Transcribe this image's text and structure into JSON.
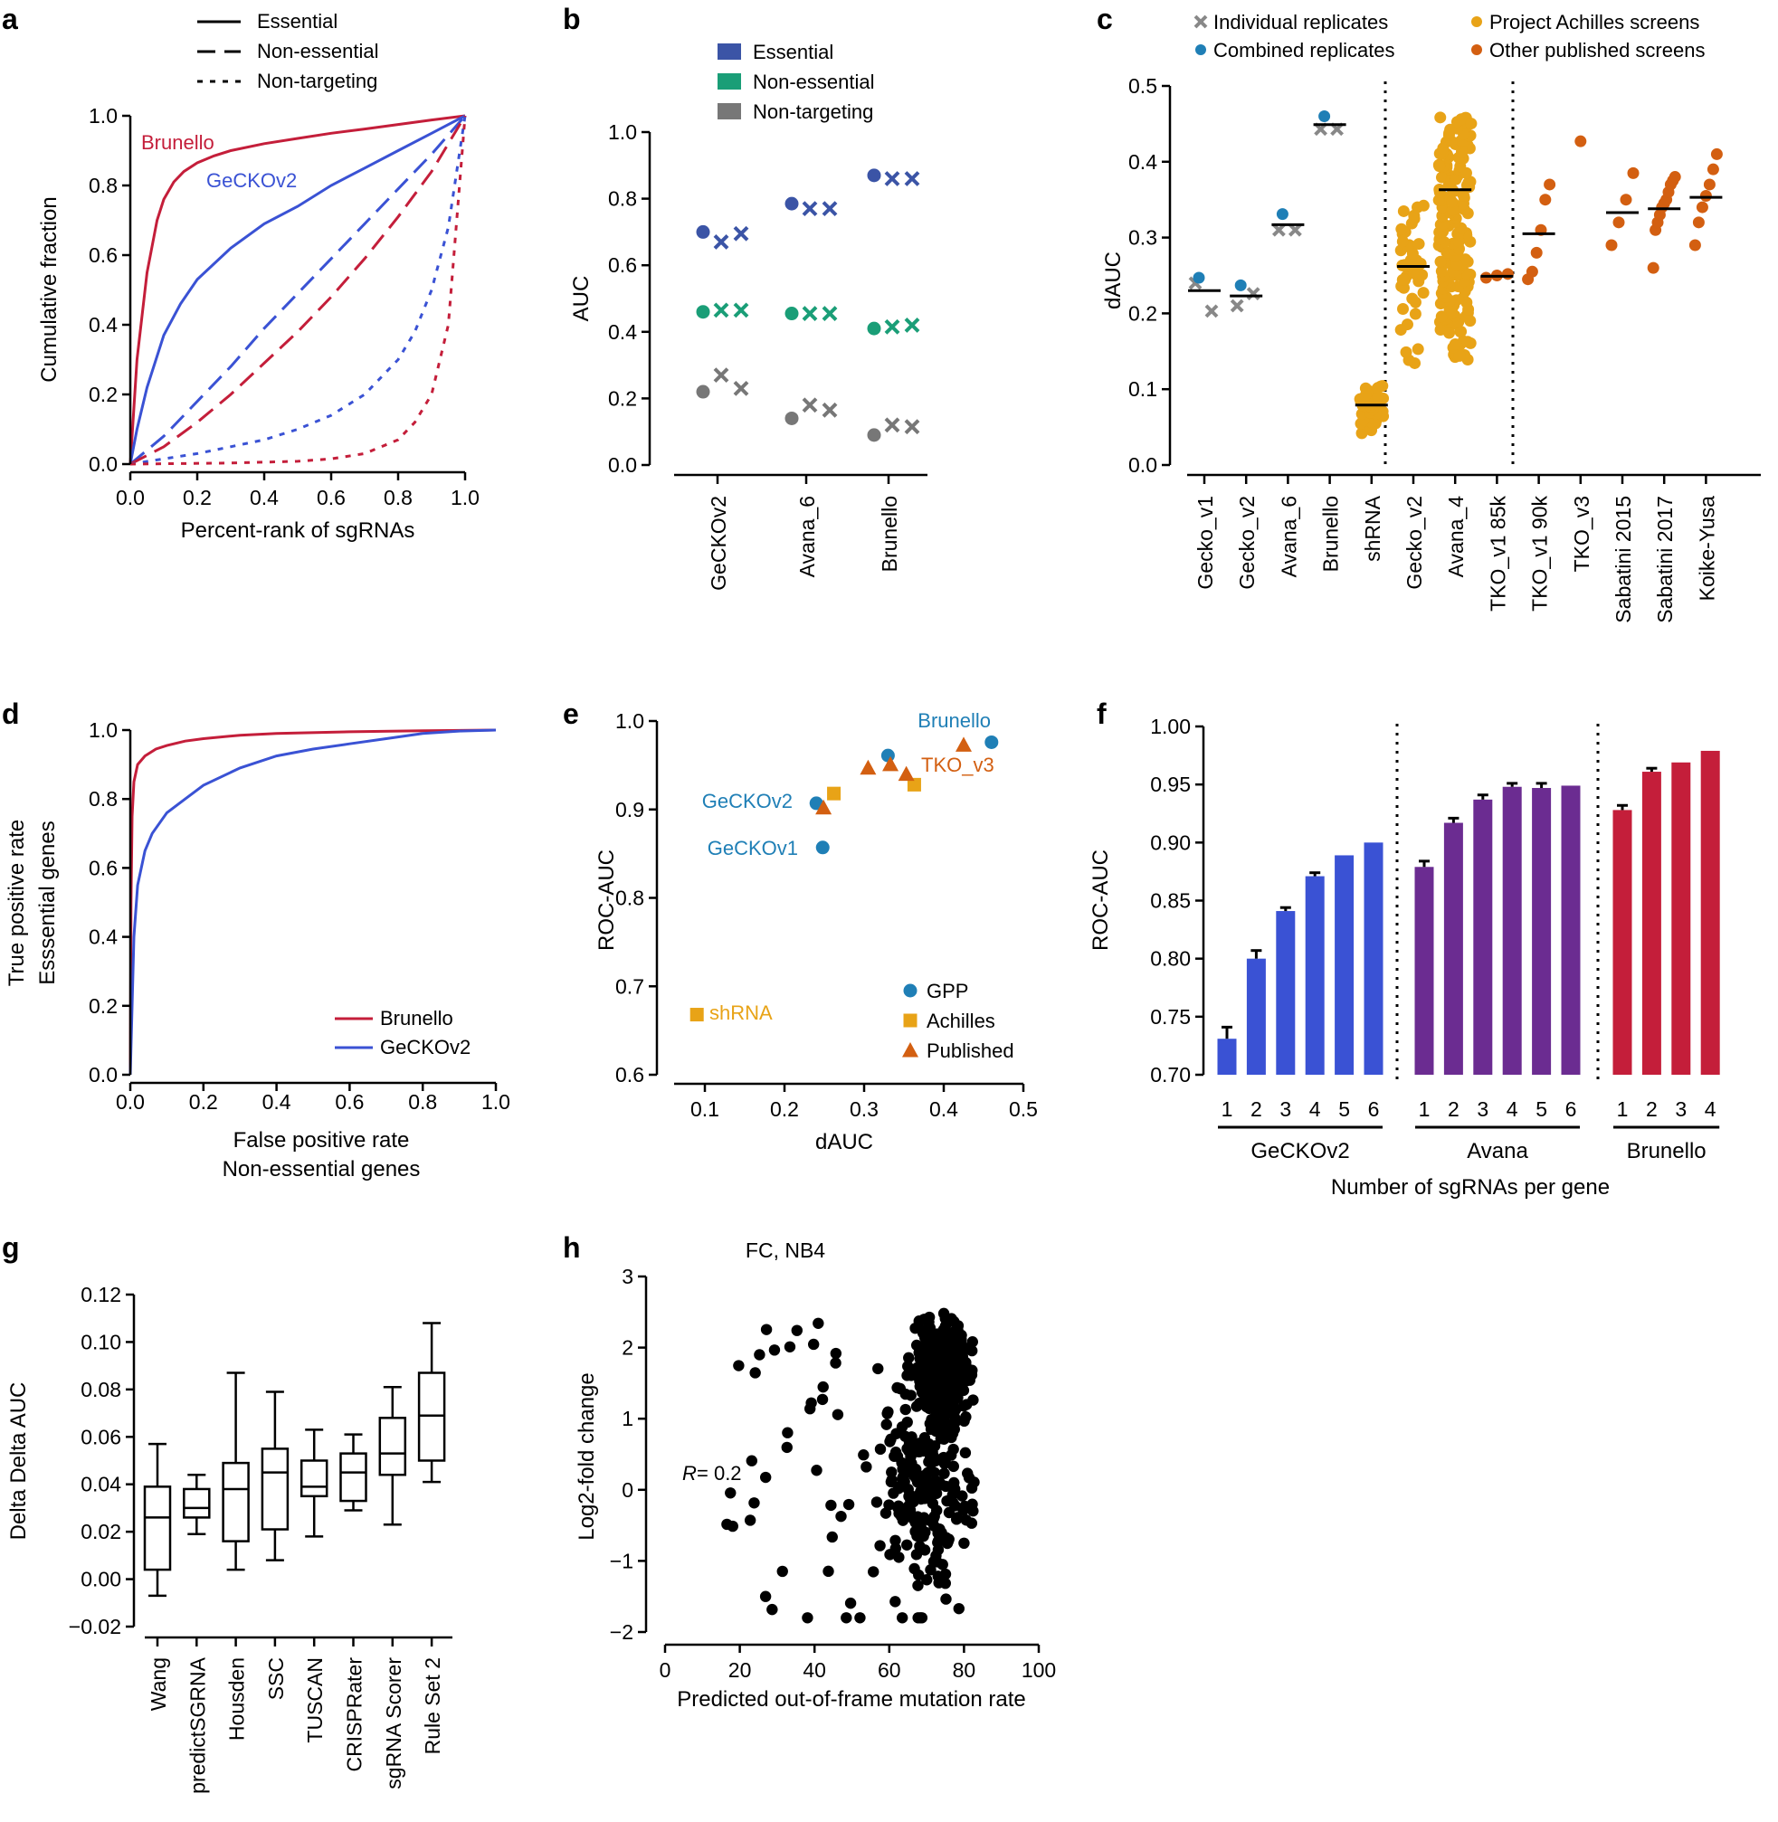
{
  "colors": {
    "brunello": "#c41e3a",
    "geckov2": "#3a52d4",
    "essential_b": "#3b54a6",
    "nonessential_b": "#1a9e77",
    "nontargeting_b": "#777777",
    "gpp": "#1f7fb6",
    "achilles": "#e8a317",
    "published": "#d35f11",
    "avana_bar": "#6b2c91",
    "gecko_bar": "#3a52d4",
    "brunello_bar": "#c41e3a",
    "black": "#000000",
    "gray_x": "#888888"
  },
  "chart_data": [
    {
      "panel": "a",
      "type": "line",
      "xlabel": "Percent-rank of sgRNAs",
      "ylabel": "Cumulative fraction",
      "xlim": [
        0,
        1
      ],
      "ylim": [
        0,
        1
      ],
      "xticks": [
        "0.0",
        "0.2",
        "0.4",
        "0.6",
        "0.8",
        "1.0"
      ],
      "yticks": [
        "0.0",
        "0.2",
        "0.4",
        "0.6",
        "0.8",
        "1.0"
      ],
      "legend": [
        "Essential",
        "Non-essential",
        "Non-targeting"
      ],
      "annotations": [
        "Brunello",
        "GeCKOv2"
      ],
      "series": [
        {
          "name": "Brunello Essential",
          "style": "solid",
          "color": "brunello",
          "x": [
            0,
            0.02,
            0.05,
            0.08,
            0.1,
            0.13,
            0.16,
            0.2,
            0.25,
            0.3,
            0.4,
            0.5,
            0.6,
            0.7,
            0.8,
            0.9,
            1.0
          ],
          "y": [
            0,
            0.3,
            0.55,
            0.7,
            0.76,
            0.81,
            0.84,
            0.865,
            0.885,
            0.9,
            0.92,
            0.935,
            0.95,
            0.962,
            0.975,
            0.988,
            1.0
          ]
        },
        {
          "name": "GeCKOv2 Essential",
          "style": "solid",
          "color": "geckov2",
          "x": [
            0,
            0.02,
            0.05,
            0.1,
            0.15,
            0.2,
            0.3,
            0.4,
            0.5,
            0.6,
            0.7,
            0.8,
            0.9,
            1.0
          ],
          "y": [
            0,
            0.1,
            0.22,
            0.37,
            0.46,
            0.53,
            0.62,
            0.69,
            0.74,
            0.8,
            0.85,
            0.9,
            0.95,
            1.0
          ]
        },
        {
          "name": "GeCKOv2 Non-essential",
          "style": "dash",
          "color": "geckov2",
          "x": [
            0,
            0.1,
            0.2,
            0.3,
            0.4,
            0.5,
            0.6,
            0.7,
            0.8,
            0.9,
            1.0
          ],
          "y": [
            0,
            0.08,
            0.18,
            0.28,
            0.39,
            0.49,
            0.59,
            0.69,
            0.79,
            0.89,
            1.0
          ]
        },
        {
          "name": "Brunello Non-essential",
          "style": "dash",
          "color": "brunello",
          "x": [
            0,
            0.1,
            0.2,
            0.3,
            0.4,
            0.5,
            0.6,
            0.7,
            0.8,
            0.9,
            1.0
          ],
          "y": [
            0,
            0.05,
            0.12,
            0.2,
            0.29,
            0.38,
            0.48,
            0.59,
            0.71,
            0.84,
            1.0
          ]
        },
        {
          "name": "GeCKOv2 Non-targeting",
          "style": "dot",
          "color": "geckov2",
          "x": [
            0,
            0.2,
            0.3,
            0.4,
            0.5,
            0.6,
            0.7,
            0.8,
            0.85,
            0.9,
            0.95,
            1.0
          ],
          "y": [
            0,
            0.03,
            0.05,
            0.07,
            0.1,
            0.14,
            0.2,
            0.3,
            0.38,
            0.5,
            0.68,
            1.0
          ]
        },
        {
          "name": "Brunello Non-targeting",
          "style": "dot",
          "color": "brunello",
          "x": [
            0,
            0.3,
            0.5,
            0.6,
            0.7,
            0.8,
            0.85,
            0.9,
            0.95,
            1.0
          ],
          "y": [
            0,
            0.003,
            0.008,
            0.015,
            0.03,
            0.07,
            0.12,
            0.2,
            0.4,
            1.0
          ]
        }
      ]
    },
    {
      "panel": "b",
      "type": "scatter",
      "ylabel": "AUC",
      "ylim": [
        0,
        1
      ],
      "yticks": [
        "0.0",
        "0.2",
        "0.4",
        "0.6",
        "0.8",
        "1.0"
      ],
      "categories": [
        "GeCKOv2",
        "Avana_6",
        "Brunello"
      ],
      "legend": [
        "Essential",
        "Non-essential",
        "Non-targeting"
      ],
      "series": [
        {
          "name": "Essential",
          "color": "essential_b",
          "combined": [
            0.7,
            0.785,
            0.87
          ],
          "replicates": [
            [
              0.67,
              0.695
            ],
            [
              0.77,
              0.77
            ],
            [
              0.86,
              0.86
            ]
          ]
        },
        {
          "name": "Non-essential",
          "color": "nonessential_b",
          "combined": [
            0.46,
            0.455,
            0.41
          ],
          "replicates": [
            [
              0.465,
              0.465
            ],
            [
              0.455,
              0.455
            ],
            [
              0.415,
              0.42
            ]
          ]
        },
        {
          "name": "Non-targeting",
          "color": "nontargeting_b",
          "combined": [
            0.22,
            0.14,
            0.09
          ],
          "replicates": [
            [
              0.27,
              0.23
            ],
            [
              0.18,
              0.165
            ],
            [
              0.12,
              0.115
            ]
          ]
        }
      ]
    },
    {
      "panel": "c",
      "type": "scatter",
      "ylabel": "dAUC",
      "ylim": [
        0,
        0.5
      ],
      "yticks": [
        "0.0",
        "0.1",
        "0.2",
        "0.3",
        "0.4",
        "0.5"
      ],
      "categories": [
        "Gecko_v1",
        "Gecko_v2",
        "Avana_6",
        "Brunello",
        "shRNA",
        "Gecko_v2",
        "Avana_4",
        "TKO_v1 85k",
        "TKO_v1 90k",
        "TKO_v3",
        "Sabatini 2015",
        "Sabatini 2017",
        "Koike-Yusa"
      ],
      "legend": [
        "Individual replicates",
        "Combined replicates",
        "Project Achilles screens",
        "Other published screens"
      ],
      "medians": [
        0.23,
        0.223,
        0.317,
        0.449,
        0.079,
        0.262,
        0.363,
        0.249,
        0.305,
        null,
        0.333,
        0.338,
        0.353
      ],
      "replicates_x": [
        [
          0.24,
          0.203
        ],
        [
          0.21,
          0.226
        ],
        [
          0.31,
          0.31
        ],
        [
          0.443,
          0.443
        ],
        [],
        [],
        [],
        [],
        [],
        [],
        [],
        [],
        []
      ],
      "combined": [
        0.247,
        0.237,
        0.331,
        0.46,
        null,
        null,
        null,
        null,
        null,
        null,
        null,
        null,
        null
      ],
      "achilles_points": {
        "shRNA": [
          0.045,
          0.05,
          0.055,
          0.06,
          0.062,
          0.065,
          0.068,
          0.07,
          0.072,
          0.075,
          0.078,
          0.08,
          0.082,
          0.085,
          0.088,
          0.09,
          0.093,
          0.095,
          0.098,
          0.1
        ],
        "Gecko_v2": [
          0.14,
          0.15,
          0.18,
          0.2,
          0.215,
          0.23,
          0.24,
          0.245,
          0.25,
          0.255,
          0.26,
          0.265,
          0.27,
          0.275,
          0.28,
          0.285,
          0.29,
          0.3,
          0.31,
          0.32,
          0.33,
          0.34
        ],
        "Avana_4": [
          0.14,
          0.16,
          0.18,
          0.19,
          0.2,
          0.21,
          0.22,
          0.23,
          0.24,
          0.25,
          0.26,
          0.27,
          0.28,
          0.29,
          0.3,
          0.31,
          0.32,
          0.33,
          0.34,
          0.35,
          0.36,
          0.37,
          0.38,
          0.39,
          0.4,
          0.41,
          0.42,
          0.43,
          0.44,
          0.455
        ]
      },
      "published_points": {
        "TKO_v1 85k": [
          0.247,
          0.25,
          0.252
        ],
        "TKO_v1 90k": [
          0.245,
          0.255,
          0.28,
          0.31,
          0.35,
          0.37
        ],
        "TKO_v3": [
          0.427
        ],
        "Sabatini 2015": [
          0.29,
          0.32,
          0.35,
          0.385
        ],
        "Sabatini 2017": [
          0.26,
          0.31,
          0.32,
          0.33,
          0.34,
          0.345,
          0.35,
          0.36,
          0.37,
          0.375,
          0.38
        ],
        "Koike-Yusa": [
          0.29,
          0.32,
          0.34,
          0.355,
          0.37,
          0.39,
          0.41
        ]
      }
    },
    {
      "panel": "d",
      "type": "line",
      "xlabel": "False positive rate",
      "xlabel2": "Non-essential genes",
      "ylabel": "True positive rate",
      "ylabel2": "Esssential genes",
      "xlim": [
        0,
        1
      ],
      "ylim": [
        0,
        1
      ],
      "xticks": [
        "0.0",
        "0.2",
        "0.4",
        "0.6",
        "0.8",
        "1.0"
      ],
      "yticks": [
        "0.0",
        "0.2",
        "0.4",
        "0.6",
        "0.8",
        "1.0"
      ],
      "series": [
        {
          "name": "Brunello",
          "color": "brunello",
          "x": [
            0,
            0.002,
            0.005,
            0.01,
            0.02,
            0.04,
            0.07,
            0.1,
            0.15,
            0.2,
            0.3,
            0.4,
            0.6,
            0.8,
            1.0
          ],
          "y": [
            0,
            0.5,
            0.75,
            0.85,
            0.9,
            0.925,
            0.945,
            0.955,
            0.968,
            0.975,
            0.985,
            0.99,
            0.995,
            0.998,
            1.0
          ]
        },
        {
          "name": "GeCKOv2",
          "color": "geckov2",
          "x": [
            0,
            0.005,
            0.01,
            0.02,
            0.04,
            0.06,
            0.1,
            0.15,
            0.2,
            0.3,
            0.4,
            0.5,
            0.6,
            0.7,
            0.8,
            0.9,
            1.0
          ],
          "y": [
            0,
            0.2,
            0.4,
            0.55,
            0.65,
            0.7,
            0.76,
            0.8,
            0.84,
            0.89,
            0.925,
            0.945,
            0.96,
            0.975,
            0.99,
            0.997,
            1.0
          ]
        }
      ]
    },
    {
      "panel": "e",
      "type": "scatter",
      "xlabel": "dAUC",
      "ylabel": "ROC-AUC",
      "xlim": [
        0.05,
        0.5
      ],
      "ylim": [
        0.6,
        1.0
      ],
      "xticks": [
        "0.1",
        "0.2",
        "0.3",
        "0.4",
        "0.5"
      ],
      "yticks": [
        "0.6",
        "0.7",
        "0.8",
        "0.9",
        "1.0"
      ],
      "legend": [
        "GPP",
        "Achilles",
        "Published"
      ],
      "points": [
        {
          "group": "GPP",
          "x": 0.46,
          "y": 0.976,
          "label": "Brunello"
        },
        {
          "group": "GPP",
          "x": 0.33,
          "y": 0.961,
          "label": ""
        },
        {
          "group": "GPP",
          "x": 0.24,
          "y": 0.907,
          "label": "GeCKOv2"
        },
        {
          "group": "GPP",
          "x": 0.248,
          "y": 0.857,
          "label": "GeCKOv1"
        },
        {
          "group": "Achilles",
          "x": 0.09,
          "y": 0.668,
          "label": "shRNA"
        },
        {
          "group": "Achilles",
          "x": 0.262,
          "y": 0.918,
          "label": ""
        },
        {
          "group": "Achilles",
          "x": 0.363,
          "y": 0.928,
          "label": ""
        },
        {
          "group": "Published",
          "x": 0.425,
          "y": 0.973,
          "label": "TKO_v3"
        },
        {
          "group": "Published",
          "x": 0.305,
          "y": 0.947,
          "label": ""
        },
        {
          "group": "Published",
          "x": 0.333,
          "y": 0.951,
          "label": ""
        },
        {
          "group": "Published",
          "x": 0.353,
          "y": 0.94,
          "label": ""
        },
        {
          "group": "Published",
          "x": 0.249,
          "y": 0.902,
          "label": ""
        }
      ]
    },
    {
      "panel": "f",
      "type": "bar",
      "xlabel": "Number of sgRNAs per gene",
      "ylabel": "ROC-AUC",
      "ylim": [
        0.7,
        1.0
      ],
      "yticks": [
        "0.70",
        "0.75",
        "0.80",
        "0.85",
        "0.90",
        "0.95",
        "1.00"
      ],
      "groups": [
        {
          "name": "GeCKOv2",
          "color": "gecko_bar",
          "categories": [
            "1",
            "2",
            "3",
            "4",
            "5",
            "6"
          ],
          "values": [
            0.731,
            0.8,
            0.841,
            0.871,
            0.889,
            0.9
          ],
          "errors": [
            0.01,
            0.007,
            0.003,
            0.003,
            0,
            0
          ]
        },
        {
          "name": "Avana",
          "color": "avana_bar",
          "categories": [
            "1",
            "2",
            "3",
            "4",
            "5",
            "6"
          ],
          "values": [
            0.879,
            0.917,
            0.937,
            0.948,
            0.947,
            0.949
          ],
          "errors": [
            0.005,
            0.004,
            0.004,
            0.003,
            0.004,
            0
          ]
        },
        {
          "name": "Brunello",
          "color": "brunello_bar",
          "categories": [
            "1",
            "2",
            "3",
            "4"
          ],
          "values": [
            0.928,
            0.961,
            0.969,
            0.979
          ],
          "errors": [
            0.004,
            0.003,
            0,
            0
          ]
        }
      ]
    },
    {
      "panel": "g",
      "type": "box",
      "ylabel": "Delta Delta AUC",
      "ylim": [
        -0.02,
        0.12
      ],
      "yticks": [
        "−0.02",
        "0.00",
        "0.02",
        "0.04",
        "0.06",
        "0.08",
        "0.10",
        "0.12"
      ],
      "categories": [
        "Wang",
        "predictSGRNA",
        "Housden",
        "SSC",
        "TUSCAN",
        "CRISPRater",
        "sgRNA Scorer",
        "Rule Set 2"
      ],
      "boxes": [
        {
          "min": -0.007,
          "q1": 0.004,
          "median": 0.026,
          "q3": 0.039,
          "max": 0.057
        },
        {
          "min": 0.019,
          "q1": 0.026,
          "median": 0.03,
          "q3": 0.038,
          "max": 0.044
        },
        {
          "min": 0.004,
          "q1": 0.016,
          "median": 0.038,
          "q3": 0.049,
          "max": 0.087
        },
        {
          "min": 0.008,
          "q1": 0.021,
          "median": 0.045,
          "q3": 0.055,
          "max": 0.079
        },
        {
          "min": 0.018,
          "q1": 0.035,
          "median": 0.039,
          "q3": 0.05,
          "max": 0.063
        },
        {
          "min": 0.029,
          "q1": 0.033,
          "median": 0.045,
          "q3": 0.053,
          "max": 0.061
        },
        {
          "min": 0.023,
          "q1": 0.044,
          "median": 0.053,
          "q3": 0.068,
          "max": 0.081
        },
        {
          "min": 0.041,
          "q1": 0.05,
          "median": 0.069,
          "q3": 0.087,
          "max": 0.108
        }
      ]
    },
    {
      "panel": "h",
      "type": "scatter",
      "title": "FC, NB4",
      "xlabel": "Predicted out-of-frame mutation rate",
      "ylabel": "Log2-fold change",
      "xlim": [
        0,
        100
      ],
      "ylim": [
        -2,
        3
      ],
      "xticks": [
        "0",
        "20",
        "40",
        "60",
        "80",
        "100"
      ],
      "yticks": [
        "−2",
        "−1",
        "0",
        "1",
        "2",
        "3"
      ],
      "annotation_r": "R",
      "annotation_value": " = 0.2",
      "n_points": 560
    }
  ],
  "panel_labels": [
    "a",
    "b",
    "c",
    "d",
    "e",
    "f",
    "g",
    "h"
  ]
}
